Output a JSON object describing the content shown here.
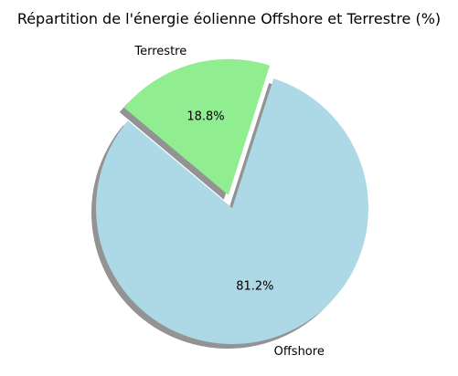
{
  "chart_data": {
    "type": "pie",
    "title": "Répartition de l'énergie éolienne Offshore et Terrestre (%)",
    "slices": [
      {
        "label": "Offshore",
        "value": 81.2,
        "pct_label": "81.2%",
        "color": "#add8e6",
        "exploded": false
      },
      {
        "label": "Terrestre",
        "value": 18.8,
        "pct_label": "18.8%",
        "color": "#90ee90",
        "exploded": true
      }
    ],
    "start_angle_deg": 140,
    "shadow": true
  }
}
